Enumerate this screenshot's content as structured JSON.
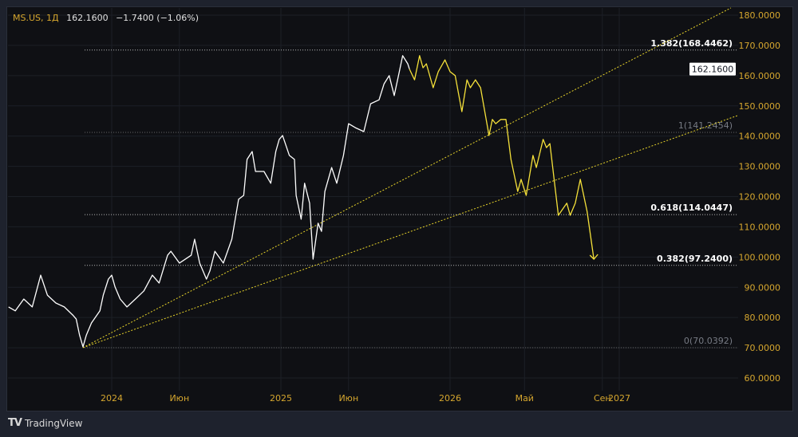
{
  "header": {
    "symbol": "MS.US, 1Д",
    "price": "162.1600",
    "change": "−1.7400 (−1.06%)"
  },
  "branding": "TradingView",
  "colors": {
    "axis_text": "#d5a62e",
    "price_line": "#ffffff",
    "projection_line": "#f5e13a",
    "fan_lines": "#e8d42a",
    "fib_lines": "#9a9a9a",
    "background": "#0f1014"
  },
  "chart_data": {
    "type": "line",
    "x_ticks": [
      {
        "x": 2024.0,
        "label": "2024"
      },
      {
        "x": 2024.4,
        "label": "Июн"
      },
      {
        "x": 2025.0,
        "label": "2025"
      },
      {
        "x": 2025.4,
        "label": "Июн"
      },
      {
        "x": 2026.0,
        "label": "2026"
      },
      {
        "x": 2026.44,
        "label": "Май"
      },
      {
        "x": 2026.9,
        "label": "Сен"
      },
      {
        "x": 2027.0,
        "label": "2027"
      }
    ],
    "xlim": [
      2023.35,
      2027.75
    ],
    "ylim": [
      58,
      182.4
    ],
    "y_ticks": [
      60,
      70,
      80,
      90,
      100,
      110,
      120,
      130,
      140,
      150,
      160,
      170,
      180
    ],
    "y_tick_format": 4,
    "last_price_label": "162.1600",
    "series": [
      {
        "role": "price",
        "points": [
          [
            2023.39,
            83.5
          ],
          [
            2023.43,
            82.2
          ],
          [
            2023.48,
            86.1
          ],
          [
            2023.53,
            83.5
          ],
          [
            2023.58,
            94.0
          ],
          [
            2023.62,
            87.4
          ],
          [
            2023.67,
            84.8
          ],
          [
            2023.72,
            83.5
          ],
          [
            2023.77,
            80.8
          ],
          [
            2023.79,
            79.5
          ],
          [
            2023.81,
            74.2
          ],
          [
            2023.83,
            70.3
          ],
          [
            2023.85,
            74.2
          ],
          [
            2023.88,
            78.2
          ],
          [
            2023.93,
            82.2
          ],
          [
            2023.95,
            87.4
          ],
          [
            2023.98,
            92.7
          ],
          [
            2024.0,
            94.0
          ],
          [
            2024.02,
            90.1
          ],
          [
            2024.05,
            86.1
          ],
          [
            2024.09,
            83.5
          ],
          [
            2024.14,
            86.1
          ],
          [
            2024.19,
            88.8
          ],
          [
            2024.24,
            94.0
          ],
          [
            2024.28,
            91.4
          ],
          [
            2024.33,
            100.6
          ],
          [
            2024.35,
            101.9
          ],
          [
            2024.4,
            98.0
          ],
          [
            2024.47,
            100.6
          ],
          [
            2024.49,
            105.9
          ],
          [
            2024.52,
            98.0
          ],
          [
            2024.56,
            92.7
          ],
          [
            2024.58,
            95.4
          ],
          [
            2024.61,
            101.9
          ],
          [
            2024.66,
            98.0
          ],
          [
            2024.71,
            105.9
          ],
          [
            2024.75,
            119.1
          ],
          [
            2024.78,
            120.4
          ],
          [
            2024.8,
            132.3
          ],
          [
            2024.83,
            134.9
          ],
          [
            2024.85,
            128.3
          ],
          [
            2024.9,
            128.3
          ],
          [
            2024.94,
            124.4
          ],
          [
            2024.97,
            134.9
          ],
          [
            2024.99,
            138.9
          ],
          [
            2025.01,
            140.2
          ],
          [
            2025.05,
            133.6
          ],
          [
            2025.08,
            132.3
          ],
          [
            2025.09,
            120.4
          ],
          [
            2025.12,
            112.5
          ],
          [
            2025.14,
            124.4
          ],
          [
            2025.17,
            117.8
          ],
          [
            2025.19,
            99.3
          ],
          [
            2025.22,
            111.2
          ],
          [
            2025.24,
            108.5
          ],
          [
            2025.26,
            121.7
          ],
          [
            2025.3,
            129.6
          ],
          [
            2025.33,
            124.4
          ],
          [
            2025.37,
            133.6
          ],
          [
            2025.4,
            144.1
          ],
          [
            2025.44,
            142.8
          ],
          [
            2025.49,
            141.5
          ],
          [
            2025.53,
            150.7
          ],
          [
            2025.58,
            152.0
          ],
          [
            2025.61,
            157.3
          ],
          [
            2025.64,
            160.0
          ],
          [
            2025.67,
            153.4
          ],
          [
            2025.7,
            161.3
          ],
          [
            2025.72,
            166.6
          ],
          [
            2025.75,
            163.9
          ],
          [
            2025.76,
            162.16
          ]
        ]
      },
      {
        "role": "projection",
        "points": [
          [
            2025.76,
            162.16
          ],
          [
            2025.79,
            158.6
          ],
          [
            2025.82,
            166.6
          ],
          [
            2025.84,
            162.6
          ],
          [
            2025.86,
            163.9
          ],
          [
            2025.9,
            156.0
          ],
          [
            2025.93,
            161.3
          ],
          [
            2025.97,
            165.2
          ],
          [
            2026.0,
            161.3
          ],
          [
            2026.03,
            160.0
          ],
          [
            2026.07,
            148.1
          ],
          [
            2026.1,
            158.6
          ],
          [
            2026.12,
            156.0
          ],
          [
            2026.15,
            158.6
          ],
          [
            2026.18,
            156.0
          ],
          [
            2026.23,
            140.2
          ],
          [
            2026.25,
            145.5
          ],
          [
            2026.27,
            144.1
          ],
          [
            2026.3,
            145.5
          ],
          [
            2026.33,
            145.5
          ],
          [
            2026.36,
            132.3
          ],
          [
            2026.4,
            121.7
          ],
          [
            2026.42,
            125.7
          ],
          [
            2026.45,
            120.4
          ],
          [
            2026.49,
            133.6
          ],
          [
            2026.51,
            129.6
          ],
          [
            2026.55,
            138.9
          ],
          [
            2026.57,
            136.2
          ],
          [
            2026.59,
            137.5
          ],
          [
            2026.64,
            113.8
          ],
          [
            2026.69,
            117.8
          ],
          [
            2026.71,
            113.8
          ],
          [
            2026.74,
            117.8
          ],
          [
            2026.77,
            125.7
          ],
          [
            2026.81,
            115.1
          ],
          [
            2026.85,
            99.3
          ]
        ]
      }
    ],
    "fan_lines": [
      [
        [
          2023.83,
          70.04
        ],
        [
          2027.66,
          182.4
        ]
      ],
      [
        [
          2023.83,
          70.04
        ],
        [
          2027.7,
          146.8
        ]
      ]
    ],
    "fib_levels": [
      {
        "value": 168.4462,
        "label": "1.382(168.4462)",
        "emphasis": true
      },
      {
        "value": 141.2454,
        "label": "1(141.2454)",
        "emphasis": false
      },
      {
        "value": 114.0447,
        "label": "0.618(114.0447)",
        "emphasis": true
      },
      {
        "value": 97.24,
        "label": "0.382(97.2400)",
        "emphasis": true
      },
      {
        "value": 70.0392,
        "label": "0(70.0392)",
        "emphasis": false
      }
    ],
    "fib_start_x": 2023.84,
    "fib_end_x": 2027.7
  }
}
